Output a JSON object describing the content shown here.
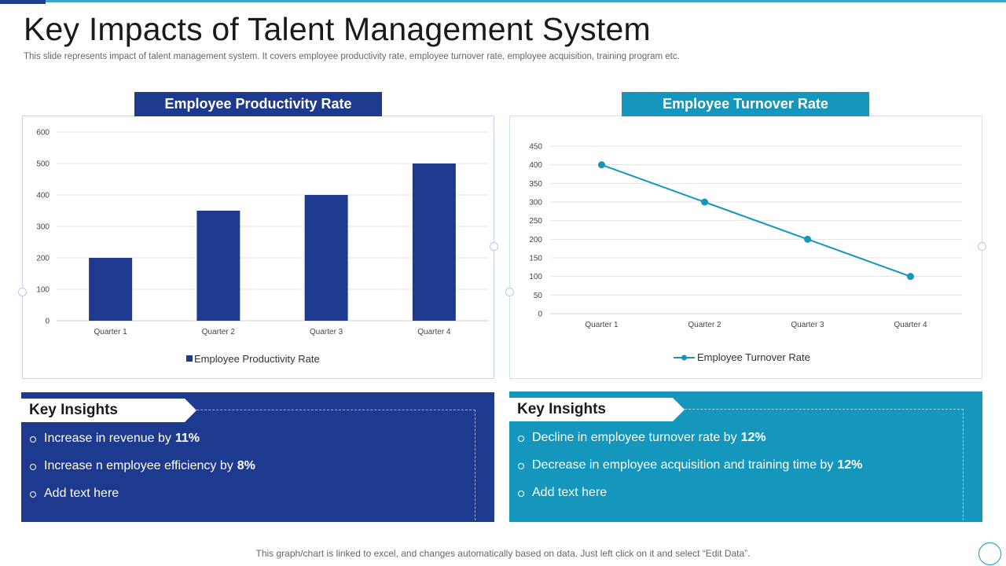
{
  "slide": {
    "title": "Key Impacts of Talent Management System",
    "subtitle": "This slide represents impact of talent management system. It covers employee productivity rate, employee turnover rate, employee acquisition, training program etc.",
    "footer": "This graph/chart is linked to excel,  and changes automatically based on data. Just left click on it and select “Edit Data”."
  },
  "colors": {
    "navy": "#1e3a8e",
    "teal": "#1596bd"
  },
  "chart_data": [
    {
      "type": "bar",
      "title": "Employee Productivity Rate",
      "categories": [
        "Quarter 1",
        "Quarter 2",
        "Quarter 3",
        "Quarter 4"
      ],
      "series": [
        {
          "name": "Employee Productivity Rate",
          "values": [
            200,
            350,
            400,
            500
          ]
        }
      ],
      "ylim": [
        0,
        600
      ],
      "yticks": [
        0,
        100,
        200,
        300,
        400,
        500,
        600
      ],
      "xlabel": "",
      "ylabel": "",
      "legend": "bottom"
    },
    {
      "type": "line",
      "title": "Employee Turnover Rate",
      "categories": [
        "Quarter 1",
        "Quarter 2",
        "Quarter 3",
        "Quarter 4"
      ],
      "series": [
        {
          "name": "Employee Turnover Rate",
          "values": [
            400,
            300,
            200,
            100
          ]
        }
      ],
      "ylim": [
        0,
        450
      ],
      "yticks": [
        0,
        50,
        100,
        150,
        200,
        250,
        300,
        350,
        400,
        450
      ],
      "xlabel": "",
      "ylabel": "",
      "legend": "bottom"
    }
  ],
  "insights": {
    "left": {
      "heading": "Key Insights",
      "items": [
        {
          "text": "Increase  in revenue  by",
          "highlight": "11%"
        },
        {
          "text": "Increase  n employee efficiency by",
          "highlight": "8%"
        },
        {
          "text": "Add text here",
          "highlight": ""
        }
      ]
    },
    "right": {
      "heading": "Key Insights",
      "items": [
        {
          "text": "Decline in employee turnover  rate by",
          "highlight": "12%"
        },
        {
          "text": "Decrease in employee acquisition and training time by",
          "highlight": "12%"
        },
        {
          "text": "Add text here",
          "highlight": ""
        }
      ]
    }
  }
}
